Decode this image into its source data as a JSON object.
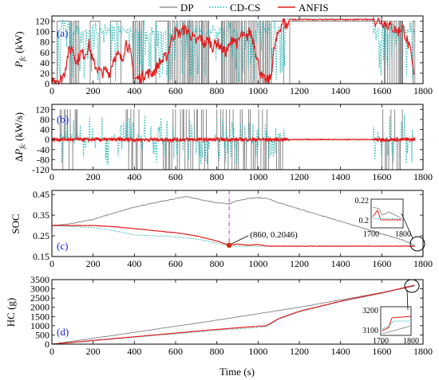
{
  "legend": [
    {
      "label": "DP",
      "color": "#808080",
      "dash": "solid"
    },
    {
      "label": "CD-CS",
      "color": "#1fb5b5",
      "dash": "dotted"
    },
    {
      "label": "ANFIS",
      "color": "#e41a1c",
      "dash": "solid"
    }
  ],
  "xlabel": "Time (s)",
  "chart_data": [
    {
      "type": "line",
      "panel_label": "(a)",
      "ylabel": "P_fc (kW)",
      "xlim": [
        0,
        1800
      ],
      "ylim": [
        0,
        130
      ],
      "xticks": [
        0,
        200,
        400,
        600,
        800,
        1000,
        1200,
        1400,
        1600,
        1800
      ],
      "yticks": [
        0,
        20,
        40,
        60,
        80,
        100,
        120
      ],
      "series": [
        {
          "name": "DP",
          "description_points": [
            [
              0,
              0
            ],
            [
              40,
              0
            ],
            [
              60,
              120
            ],
            [
              80,
              0
            ],
            [
              120,
              120
            ],
            [
              160,
              0
            ],
            [
              360,
              0
            ],
            [
              380,
              120
            ],
            [
              420,
              0
            ],
            [
              560,
              120
            ],
            [
              620,
              0
            ],
            [
              680,
              120
            ],
            [
              720,
              0
            ],
            [
              840,
              120
            ],
            [
              880,
              0
            ],
            [
              1000,
              120
            ],
            [
              1040,
              0
            ],
            [
              1100,
              120
            ],
            [
              1200,
              120
            ],
            [
              1700,
              120
            ],
            [
              1760,
              0
            ]
          ]
        },
        {
          "name": "CD-CS",
          "description_points": [
            [
              0,
              10
            ],
            [
              40,
              10
            ],
            [
              80,
              124
            ],
            [
              120,
              0
            ],
            [
              200,
              124
            ],
            [
              300,
              124
            ],
            [
              350,
              0
            ],
            [
              400,
              124
            ],
            [
              500,
              124
            ],
            [
              560,
              0
            ],
            [
              600,
              124
            ],
            [
              700,
              124
            ],
            [
              800,
              124
            ],
            [
              860,
              124
            ],
            [
              900,
              124
            ],
            [
              1000,
              124
            ],
            [
              1040,
              0
            ],
            [
              1100,
              124
            ],
            [
              1200,
              124
            ],
            [
              1500,
              124
            ],
            [
              1700,
              124
            ],
            [
              1760,
              0
            ]
          ]
        },
        {
          "name": "ANFIS",
          "description_points": [
            [
              0,
              5
            ],
            [
              20,
              10
            ],
            [
              40,
              5
            ],
            [
              60,
              20
            ],
            [
              80,
              60
            ],
            [
              100,
              70
            ],
            [
              120,
              40
            ],
            [
              140,
              60
            ],
            [
              160,
              55
            ],
            [
              180,
              75
            ],
            [
              200,
              40
            ],
            [
              220,
              30
            ],
            [
              240,
              20
            ],
            [
              260,
              25
            ],
            [
              280,
              20
            ],
            [
              300,
              50
            ],
            [
              320,
              55
            ],
            [
              340,
              45
            ],
            [
              360,
              80
            ],
            [
              380,
              60
            ],
            [
              400,
              10
            ],
            [
              420,
              10
            ],
            [
              440,
              15
            ],
            [
              460,
              20
            ],
            [
              480,
              20
            ],
            [
              500,
              25
            ],
            [
              520,
              40
            ],
            [
              540,
              45
            ],
            [
              560,
              55
            ],
            [
              580,
              85
            ],
            [
              600,
              100
            ],
            [
              620,
              95
            ],
            [
              640,
              105
            ],
            [
              660,
              100
            ],
            [
              680,
              90
            ],
            [
              700,
              80
            ],
            [
              720,
              90
            ],
            [
              740,
              75
            ],
            [
              760,
              85
            ],
            [
              780,
              70
            ],
            [
              800,
              80
            ],
            [
              820,
              70
            ],
            [
              840,
              60
            ],
            [
              860,
              70
            ],
            [
              880,
              90
            ],
            [
              900,
              75
            ],
            [
              920,
              95
            ],
            [
              940,
              85
            ],
            [
              960,
              100
            ],
            [
              980,
              80
            ],
            [
              1000,
              40
            ],
            [
              1020,
              10
            ],
            [
              1040,
              5
            ],
            [
              1060,
              10
            ],
            [
              1080,
              70
            ],
            [
              1100,
              100
            ],
            [
              1120,
              120
            ],
            [
              1140,
              110
            ],
            [
              1160,
              125
            ],
            [
              1200,
              124
            ],
            [
              1300,
              124
            ],
            [
              1400,
              124
            ],
            [
              1500,
              124
            ],
            [
              1600,
              120
            ],
            [
              1680,
              100
            ],
            [
              1700,
              110
            ],
            [
              1740,
              60
            ],
            [
              1760,
              5
            ]
          ]
        }
      ]
    },
    {
      "type": "line",
      "panel_label": "(b)",
      "ylabel": "ΔP_fc (kW/s)",
      "xlim": [
        0,
        1800
      ],
      "ylim": [
        -120,
        140
      ],
      "xticks": [
        0,
        200,
        400,
        600,
        800,
        1000,
        1200,
        1400,
        1600,
        1800
      ],
      "yticks": [
        -120,
        -80,
        -40,
        0,
        40,
        80,
        120
      ],
      "series": [
        {
          "name": "DP",
          "description": "spikes between -120 and 120 at switching instants"
        },
        {
          "name": "CD-CS",
          "description": "frequent oscillations up to about ±110"
        },
        {
          "name": "ANFIS",
          "description": "small fluctuations around 0, within about ±10"
        }
      ]
    },
    {
      "type": "line",
      "panel_label": "(c)",
      "ylabel": "SOC",
      "xlim": [
        0,
        1800
      ],
      "ylim": [
        0.15,
        0.47
      ],
      "xticks": [
        0,
        200,
        400,
        600,
        800,
        1000,
        1200,
        1400,
        1600,
        1800
      ],
      "yticks": [
        0.15,
        0.25,
        0.35,
        0.45
      ],
      "annotation": {
        "text": "(860, 0.2046)",
        "x": 860,
        "y": 0.2046
      },
      "inset": {
        "xticks": [
          1700,
          1800
        ],
        "yticks": [
          0.2,
          0.22
        ]
      },
      "series": [
        {
          "name": "DP",
          "points": [
            [
              0,
              0.3
            ],
            [
              100,
              0.31
            ],
            [
              200,
              0.33
            ],
            [
              300,
              0.36
            ],
            [
              400,
              0.39
            ],
            [
              500,
              0.41
            ],
            [
              600,
              0.43
            ],
            [
              650,
              0.44
            ],
            [
              700,
              0.43
            ],
            [
              750,
              0.42
            ],
            [
              800,
              0.41
            ],
            [
              860,
              0.405
            ],
            [
              900,
              0.42
            ],
            [
              950,
              0.43
            ],
            [
              1000,
              0.435
            ],
            [
              1050,
              0.43
            ],
            [
              1100,
              0.41
            ],
            [
              1200,
              0.38
            ],
            [
              1300,
              0.35
            ],
            [
              1400,
              0.32
            ],
            [
              1500,
              0.29
            ],
            [
              1600,
              0.26
            ],
            [
              1700,
              0.23
            ],
            [
              1760,
              0.205
            ]
          ]
        },
        {
          "name": "CD-CS",
          "points": [
            [
              0,
              0.3
            ],
            [
              100,
              0.295
            ],
            [
              200,
              0.29
            ],
            [
              300,
              0.275
            ],
            [
              400,
              0.255
            ],
            [
              500,
              0.25
            ],
            [
              600,
              0.245
            ],
            [
              700,
              0.235
            ],
            [
              800,
              0.215
            ],
            [
              860,
              0.203
            ],
            [
              900,
              0.2
            ],
            [
              1000,
              0.2
            ],
            [
              1200,
              0.2
            ],
            [
              1400,
              0.2
            ],
            [
              1600,
              0.2
            ],
            [
              1760,
              0.2
            ]
          ]
        },
        {
          "name": "ANFIS",
          "points": [
            [
              0,
              0.3
            ],
            [
              100,
              0.3
            ],
            [
              200,
              0.3
            ],
            [
              300,
              0.295
            ],
            [
              400,
              0.285
            ],
            [
              500,
              0.275
            ],
            [
              600,
              0.265
            ],
            [
              700,
              0.25
            ],
            [
              800,
              0.225
            ],
            [
              860,
              0.2046
            ],
            [
              900,
              0.21
            ],
            [
              950,
              0.205
            ],
            [
              1000,
              0.208
            ],
            [
              1050,
              0.2
            ],
            [
              1100,
              0.2
            ],
            [
              1300,
              0.2
            ],
            [
              1500,
              0.2
            ],
            [
              1700,
              0.2
            ],
            [
              1760,
              0.2
            ]
          ]
        }
      ]
    },
    {
      "type": "line",
      "panel_label": "(d)",
      "ylabel": "HC (g)",
      "xlim": [
        0,
        1800
      ],
      "ylim": [
        0,
        3500
      ],
      "xticks": [
        0,
        200,
        400,
        600,
        800,
        1000,
        1200,
        1400,
        1600,
        1800
      ],
      "yticks": [
        0,
        500,
        1000,
        1500,
        2000,
        2500,
        3000,
        3500
      ],
      "inset": {
        "xticks": [
          1700,
          1800
        ],
        "yticks": [
          3100,
          3200
        ]
      },
      "series": [
        {
          "name": "DP",
          "points": [
            [
              0,
              0
            ],
            [
              200,
              320
            ],
            [
              400,
              640
            ],
            [
              600,
              970
            ],
            [
              800,
              1300
            ],
            [
              1000,
              1650
            ],
            [
              1200,
              2000
            ],
            [
              1400,
              2400
            ],
            [
              1600,
              2800
            ],
            [
              1760,
              3150
            ]
          ]
        },
        {
          "name": "CD-CS",
          "points": [
            [
              0,
              0
            ],
            [
              200,
              180
            ],
            [
              400,
              380
            ],
            [
              600,
              560
            ],
            [
              800,
              750
            ],
            [
              1000,
              900
            ],
            [
              1040,
              950
            ],
            [
              1100,
              1350
            ],
            [
              1200,
              1750
            ],
            [
              1400,
              2300
            ],
            [
              1600,
              2750
            ],
            [
              1760,
              3180
            ]
          ]
        },
        {
          "name": "ANFIS",
          "points": [
            [
              0,
              0
            ],
            [
              200,
              200
            ],
            [
              400,
              400
            ],
            [
              600,
              600
            ],
            [
              800,
              800
            ],
            [
              1000,
              970
            ],
            [
              1040,
              1000
            ],
            [
              1100,
              1380
            ],
            [
              1200,
              1780
            ],
            [
              1400,
              2330
            ],
            [
              1600,
              2780
            ],
            [
              1760,
              3200
            ]
          ]
        }
      ]
    }
  ]
}
